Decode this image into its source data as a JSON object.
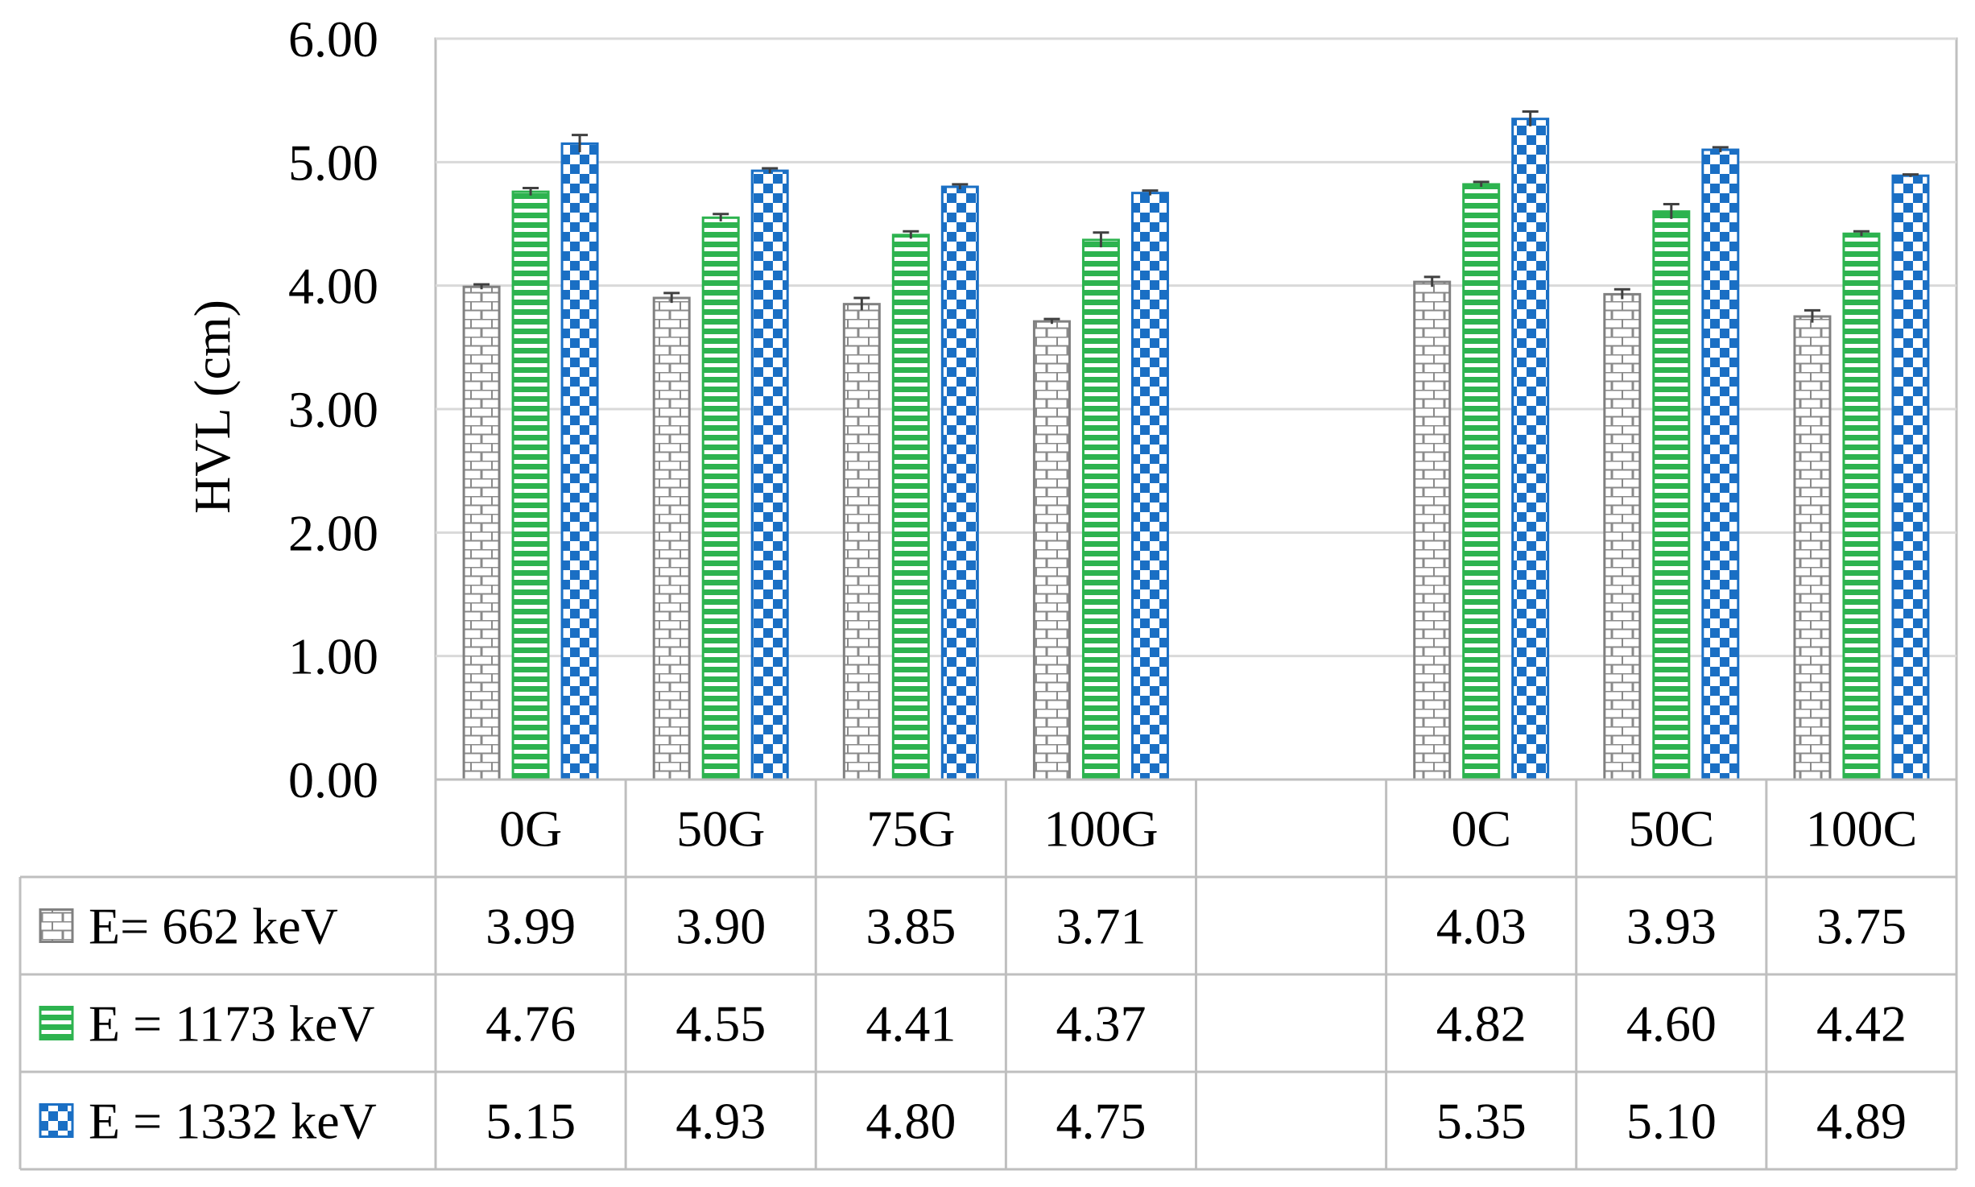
{
  "chart_data": {
    "type": "bar",
    "ylabel": "HVL (cm)",
    "ylim": [
      0,
      6
    ],
    "yticks": [
      "0.00",
      "1.00",
      "2.00",
      "3.00",
      "4.00",
      "5.00",
      "6.00"
    ],
    "grid": true,
    "legend_placement": "data table below plot",
    "categories": [
      "0G",
      "50G",
      "75G",
      "100G",
      "",
      "0C",
      "50C",
      "100C"
    ],
    "series": [
      {
        "name": "E= 662 keV",
        "color": "#808080",
        "pattern": "brick",
        "values": [
          3.99,
          3.9,
          3.85,
          3.71,
          null,
          4.03,
          3.93,
          3.75
        ],
        "labels": [
          "3.99",
          "3.90",
          "3.85",
          "3.71",
          "",
          "4.03",
          "3.93",
          "3.75"
        ],
        "errors": [
          0.02,
          0.04,
          0.05,
          0.02,
          null,
          0.04,
          0.04,
          0.05
        ]
      },
      {
        "name": "E = 1173 keV",
        "color": "#2db34f",
        "pattern": "horizontal-lines",
        "values": [
          4.76,
          4.55,
          4.41,
          4.37,
          null,
          4.82,
          4.6,
          4.42
        ],
        "labels": [
          "4.76",
          "4.55",
          "4.41",
          "4.37",
          "",
          "4.82",
          "4.60",
          "4.42"
        ],
        "errors": [
          0.03,
          0.03,
          0.03,
          0.06,
          null,
          0.02,
          0.06,
          0.02
        ]
      },
      {
        "name": "E = 1332 keV",
        "color": "#1a6fc4",
        "pattern": "checkerboard",
        "values": [
          5.15,
          4.93,
          4.8,
          4.75,
          null,
          5.35,
          5.1,
          4.89
        ],
        "labels": [
          "5.15",
          "4.93",
          "4.80",
          "4.75",
          "",
          "5.35",
          "5.10",
          "4.89"
        ],
        "errors": [
          0.07,
          0.02,
          0.02,
          0.02,
          null,
          0.06,
          0.02,
          0.01
        ]
      }
    ]
  }
}
